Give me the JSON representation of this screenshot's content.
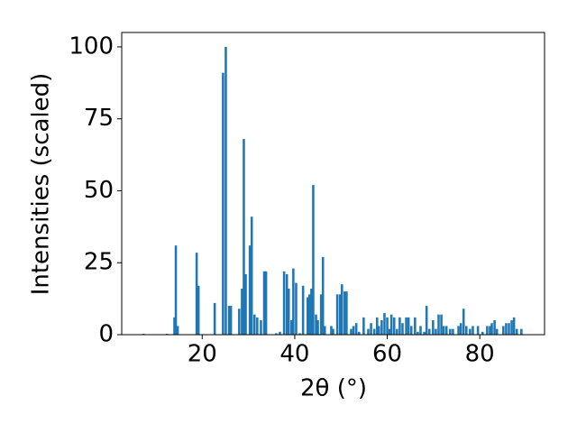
{
  "chart_data": {
    "type": "bar",
    "xlabel": "2θ (°)",
    "ylabel": "Intensities (scaled)",
    "color": "#1f77b4",
    "xlim": [
      2.6,
      94
    ],
    "ylim": [
      0,
      105
    ],
    "xticks": [
      20,
      40,
      60,
      80
    ],
    "yticks": [
      0,
      25,
      50,
      75,
      100
    ],
    "x": [
      7.3,
      12.4,
      14.0,
      14.3,
      14.7,
      18.8,
      19.2,
      22.7,
      24.5,
      25.1,
      25.8,
      26.2,
      28.0,
      28.6,
      29.0,
      29.4,
      30.3,
      30.7,
      31.3,
      31.9,
      32.7,
      33.4,
      33.8,
      36.0,
      36.8,
      37.7,
      38.3,
      38.7,
      39.3,
      39.7,
      40.3,
      41.1,
      41.8,
      42.8,
      43.2,
      43.6,
      44.0,
      44.6,
      45.0,
      45.7,
      46.1,
      46.5,
      47.9,
      48.3,
      49.2,
      49.8,
      50.2,
      50.8,
      51.2,
      52.2,
      52.7,
      53.3,
      53.9,
      54.9,
      55.9,
      56.5,
      57.2,
      57.8,
      58.2,
      58.8,
      59.4,
      60.0,
      60.5,
      60.9,
      61.5,
      62.1,
      62.7,
      63.3,
      64.1,
      64.6,
      65.2,
      66.0,
      66.6,
      67.2,
      68.0,
      68.5,
      69.1,
      69.9,
      70.5,
      71.1,
      71.7,
      72.2,
      72.8,
      73.6,
      74.2,
      75.4,
      75.9,
      76.5,
      77.1,
      77.9,
      78.5,
      79.6,
      80.6,
      81.6,
      82.2,
      82.6,
      83.2,
      83.7,
      85.1,
      85.7,
      86.3,
      86.9,
      87.4,
      88.0,
      89.0
    ],
    "values": [
      0.3,
      0.3,
      6,
      31,
      3,
      28.5,
      17,
      11,
      91,
      100,
      10,
      10,
      9,
      16,
      68,
      21,
      31,
      41,
      7,
      6,
      5,
      22,
      22,
      0.5,
      1,
      22,
      21,
      16,
      5,
      23,
      18,
      0.5,
      17,
      13,
      14,
      16,
      52,
      7,
      5,
      14,
      27,
      3,
      3,
      2,
      14,
      14,
      17.5,
      15,
      15,
      2,
      3,
      4,
      1,
      6,
      2,
      4,
      2,
      6,
      3,
      5,
      7.5,
      6,
      2,
      7,
      6,
      2,
      6,
      4,
      6,
      6,
      3,
      6,
      1,
      3,
      1,
      10,
      2,
      5,
      2,
      7,
      7,
      3,
      3,
      2,
      2,
      3,
      4,
      9,
      3,
      2,
      3,
      3,
      1,
      3,
      3,
      4,
      5,
      2,
      3,
      4,
      4,
      5,
      6,
      2,
      2
    ]
  }
}
